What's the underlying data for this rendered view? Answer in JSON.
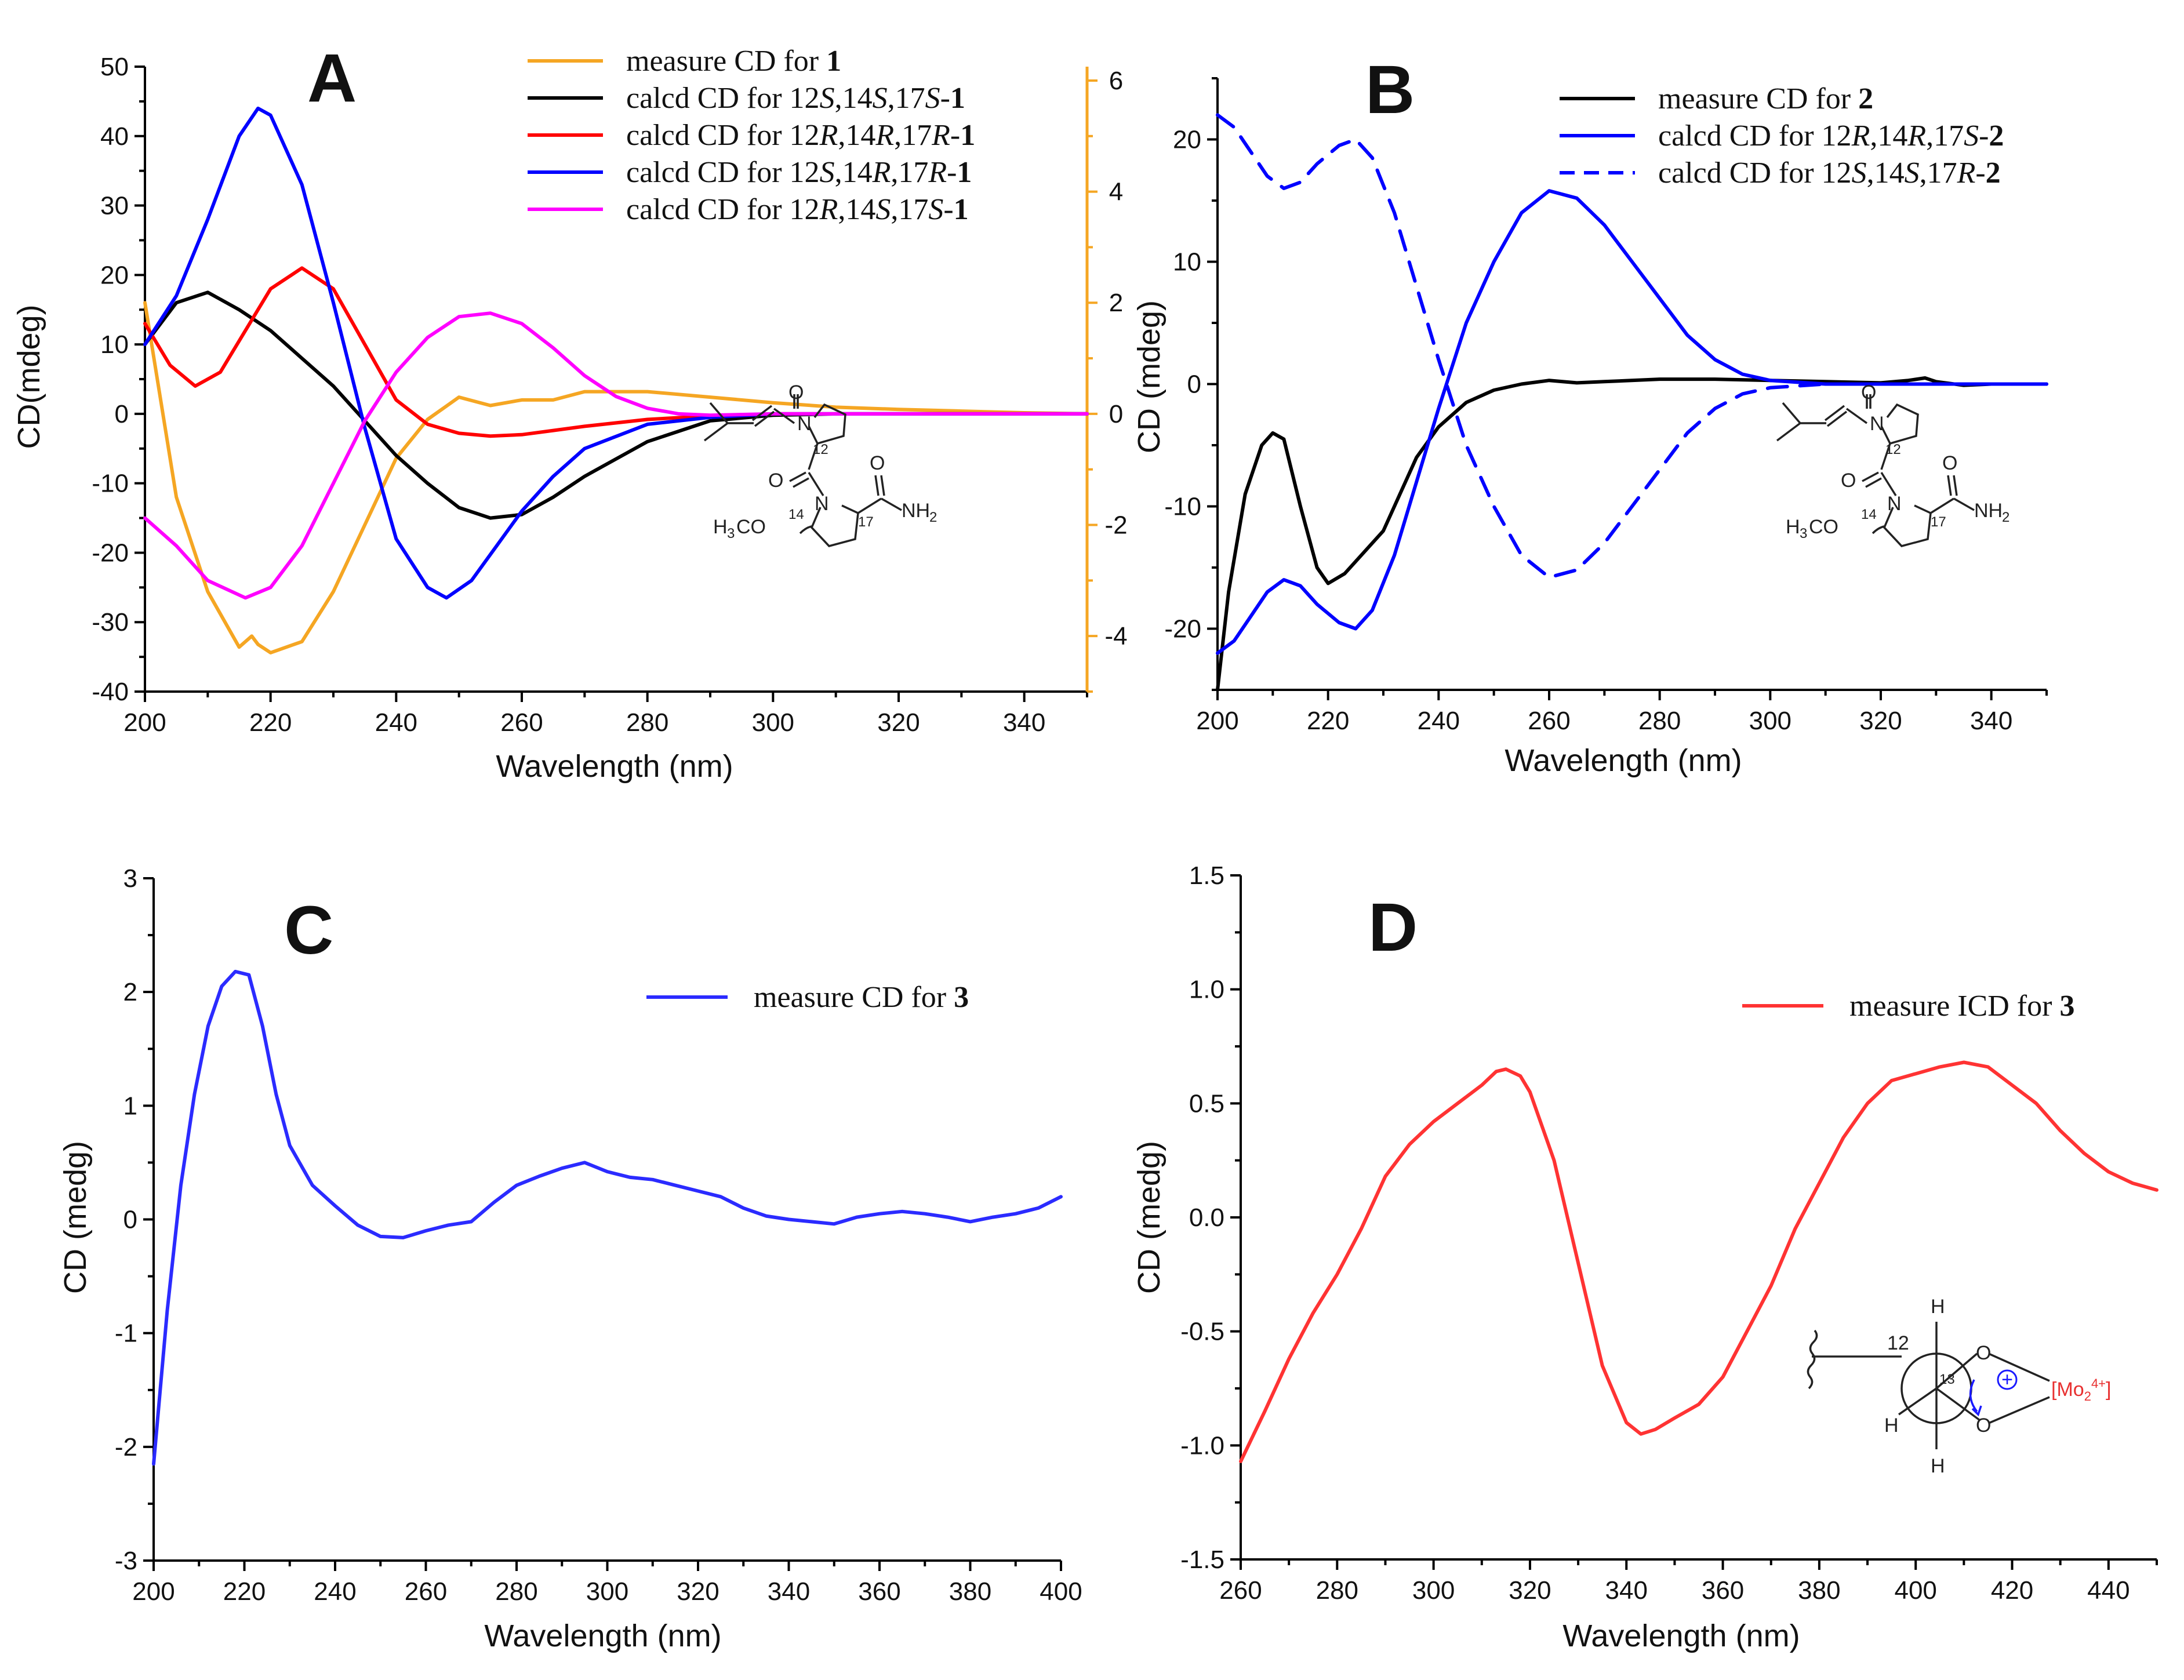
{
  "chart_data": [
    {
      "id": "A",
      "type": "line",
      "panel_label": "A",
      "xlabel": "Wavelength (nm)",
      "ylabel": "CD(mdeg)",
      "xlim": [
        200,
        350
      ],
      "ylim": [
        -40,
        50
      ],
      "y2lim": [
        -5,
        6.25
      ],
      "xticks": [
        200,
        220,
        240,
        260,
        280,
        300,
        320,
        340
      ],
      "yticks": [
        -40,
        -30,
        -20,
        -10,
        0,
        10,
        20,
        30,
        40,
        50
      ],
      "y2ticks": [
        -4,
        -2,
        0,
        2,
        4,
        6
      ],
      "y2_color": "#f5a623",
      "legend_position": "top-right",
      "series": [
        {
          "name": "measure CD for 1",
          "parts": [
            {
              "t": "measure CD for "
            },
            {
              "t": "1",
              "b": true
            }
          ],
          "color": "#f5a623",
          "axis": "right",
          "x": [
            200,
            205,
            210,
            215,
            217,
            218,
            220,
            225,
            230,
            235,
            240,
            245,
            250,
            255,
            260,
            265,
            270,
            275,
            280,
            290,
            300,
            310,
            320,
            330,
            340,
            350
          ],
          "y": [
            2.0,
            -1.5,
            -3.2,
            -4.2,
            -4.0,
            -4.15,
            -4.3,
            -4.1,
            -3.2,
            -2.0,
            -0.8,
            -0.1,
            0.3,
            0.15,
            0.25,
            0.25,
            0.4,
            0.4,
            0.4,
            0.3,
            0.2,
            0.12,
            0.08,
            0.05,
            0.02,
            0.0
          ]
        },
        {
          "name": "calcd CD for 12S,14S,17S-1",
          "parts": [
            {
              "t": "calcd CD for 12"
            },
            {
              "t": "S",
              "i": true
            },
            {
              "t": ",14"
            },
            {
              "t": "S",
              "i": true
            },
            {
              "t": ",17"
            },
            {
              "t": "S",
              "i": true
            },
            {
              "t": "-"
            },
            {
              "t": "1",
              "b": true
            }
          ],
          "color": "#000000",
          "axis": "left",
          "x": [
            200,
            205,
            210,
            215,
            220,
            225,
            230,
            235,
            240,
            245,
            250,
            255,
            260,
            265,
            270,
            280,
            290,
            300,
            310,
            320,
            330,
            340,
            350
          ],
          "y": [
            10,
            16,
            17.5,
            15,
            12,
            8,
            4,
            -1,
            -6,
            -10,
            -13.5,
            -15,
            -14.5,
            -12,
            -9,
            -4,
            -1,
            -0.2,
            0,
            0,
            0,
            0,
            0
          ]
        },
        {
          "name": "calcd CD for 12R,14R,17R-1",
          "parts": [
            {
              "t": "calcd CD for 12"
            },
            {
              "t": "R",
              "i": true
            },
            {
              "t": ",14"
            },
            {
              "t": "R",
              "i": true
            },
            {
              "t": ",17"
            },
            {
              "t": "R",
              "i": true
            },
            {
              "t": "-"
            },
            {
              "t": "1",
              "b": true
            }
          ],
          "color": "#ff0000",
          "axis": "left",
          "x": [
            200,
            204,
            208,
            212,
            216,
            220,
            225,
            230,
            235,
            240,
            245,
            250,
            255,
            260,
            265,
            270,
            280,
            290,
            300,
            310,
            350
          ],
          "y": [
            13,
            7,
            4,
            6,
            12,
            18,
            21,
            18,
            10,
            2,
            -1.5,
            -2.8,
            -3.2,
            -3,
            -2.4,
            -1.8,
            -0.8,
            -0.3,
            0,
            0,
            0
          ]
        },
        {
          "name": "calcd CD for 12S,14R,17R-1",
          "parts": [
            {
              "t": "calcd CD for 12"
            },
            {
              "t": "S",
              "i": true
            },
            {
              "t": ",14"
            },
            {
              "t": "R",
              "i": true
            },
            {
              "t": ",17"
            },
            {
              "t": "R",
              "i": true
            },
            {
              "t": "-"
            },
            {
              "t": "1",
              "b": true
            }
          ],
          "color": "#0000ff",
          "axis": "left",
          "x": [
            200,
            205,
            210,
            215,
            218,
            220,
            225,
            230,
            235,
            240,
            245,
            248,
            252,
            256,
            260,
            265,
            270,
            280,
            290,
            300,
            310,
            350
          ],
          "y": [
            10,
            17,
            28,
            40,
            44,
            43,
            33,
            16,
            -2,
            -18,
            -25,
            -26.5,
            -24,
            -19,
            -14,
            -9,
            -5,
            -1.5,
            -0.5,
            0,
            0,
            0
          ]
        },
        {
          "name": "calcd CD for 12R,14S,17S-1",
          "parts": [
            {
              "t": "calcd CD for 12"
            },
            {
              "t": "R",
              "i": true
            },
            {
              "t": ",14"
            },
            {
              "t": "S",
              "i": true
            },
            {
              "t": ",17"
            },
            {
              "t": "S",
              "i": true
            },
            {
              "t": "-"
            },
            {
              "t": "1",
              "b": true
            }
          ],
          "color": "#ff00ff",
          "axis": "left",
          "x": [
            200,
            205,
            210,
            216,
            220,
            225,
            230,
            235,
            240,
            245,
            250,
            255,
            260,
            265,
            270,
            275,
            280,
            285,
            290,
            300,
            310,
            350
          ],
          "y": [
            -15,
            -19,
            -24,
            -26.5,
            -25,
            -19,
            -10,
            -1,
            6,
            11,
            14,
            14.5,
            13,
            9.5,
            5.5,
            2.5,
            0.8,
            0,
            -0.2,
            0,
            0,
            0
          ]
        }
      ]
    },
    {
      "id": "B",
      "type": "line",
      "panel_label": "B",
      "xlabel": "Wavelength (nm)",
      "ylabel": "CD (mdeg)",
      "xlim": [
        200,
        350
      ],
      "ylim": [
        -25,
        25
      ],
      "xticks": [
        200,
        220,
        240,
        260,
        280,
        300,
        320,
        340
      ],
      "yticks": [
        -20,
        -10,
        0,
        10,
        20
      ],
      "legend_position": "top-right",
      "series": [
        {
          "name": "measure CD for 2",
          "parts": [
            {
              "t": "measure CD for "
            },
            {
              "t": "2",
              "b": true
            }
          ],
          "color": "#000000",
          "dash": "solid",
          "x": [
            200,
            202,
            205,
            208,
            210,
            212,
            215,
            218,
            220,
            223,
            226,
            230,
            233,
            236,
            240,
            245,
            250,
            255,
            260,
            265,
            270,
            280,
            290,
            300,
            310,
            320,
            325,
            328,
            330,
            335,
            340,
            350
          ],
          "y": [
            -25,
            -17,
            -9,
            -5,
            -4,
            -4.5,
            -10,
            -15,
            -16.3,
            -15.5,
            -14,
            -12,
            -9,
            -6,
            -3.5,
            -1.5,
            -0.5,
            0,
            0.3,
            0.1,
            0.2,
            0.4,
            0.4,
            0.3,
            0.2,
            0.1,
            0.3,
            0.5,
            0.2,
            -0.1,
            0,
            0
          ]
        },
        {
          "name": "calcd CD for 12R,14R,17S-2",
          "parts": [
            {
              "t": "calcd CD for 12"
            },
            {
              "t": "R",
              "i": true
            },
            {
              "t": ",14"
            },
            {
              "t": "R",
              "i": true
            },
            {
              "t": ",17"
            },
            {
              "t": "S",
              "i": true
            },
            {
              "t": "-"
            },
            {
              "t": "2",
              "b": true
            }
          ],
          "color": "#0000ff",
          "dash": "solid",
          "x": [
            200,
            203,
            206,
            209,
            212,
            215,
            218,
            222,
            225,
            228,
            232,
            236,
            240,
            245,
            250,
            255,
            260,
            265,
            270,
            275,
            280,
            285,
            290,
            295,
            300,
            310,
            320,
            330,
            340,
            350
          ],
          "y": [
            -22,
            -21,
            -19,
            -17,
            -16,
            -16.5,
            -18,
            -19.5,
            -20,
            -18.5,
            -14,
            -8,
            -2,
            5,
            10,
            14,
            15.8,
            15.2,
            13,
            10,
            7,
            4,
            2,
            0.8,
            0.3,
            0,
            0,
            0,
            0,
            0
          ]
        },
        {
          "name": "calcd CD for 12S,14S,17R-2",
          "parts": [
            {
              "t": "calcd CD for 12"
            },
            {
              "t": "S",
              "i": true
            },
            {
              "t": ",14"
            },
            {
              "t": "S",
              "i": true
            },
            {
              "t": ",17"
            },
            {
              "t": "R",
              "i": true
            },
            {
              "t": "-"
            },
            {
              "t": "2",
              "b": true
            }
          ],
          "color": "#0000ff",
          "dash": "dashed",
          "x": [
            200,
            203,
            206,
            209,
            212,
            215,
            218,
            222,
            225,
            228,
            232,
            236,
            240,
            245,
            250,
            255,
            260,
            265,
            270,
            275,
            280,
            285,
            290,
            295,
            300,
            310,
            320,
            330,
            340,
            350
          ],
          "y": [
            22,
            21,
            19,
            17,
            16,
            16.5,
            18,
            19.5,
            20,
            18.5,
            14,
            8,
            2,
            -5,
            -10,
            -14,
            -15.8,
            -15.2,
            -13,
            -10,
            -7,
            -4,
            -2,
            -0.8,
            -0.3,
            0,
            0,
            0,
            0,
            0
          ]
        }
      ]
    },
    {
      "id": "C",
      "type": "line",
      "panel_label": "C",
      "xlabel": "Wavelength (nm)",
      "ylabel": "CD (medg)",
      "xlim": [
        200,
        400
      ],
      "ylim": [
        -3,
        3
      ],
      "xticks": [
        200,
        220,
        240,
        260,
        280,
        300,
        320,
        340,
        360,
        380,
        400
      ],
      "yticks": [
        -3,
        -2,
        -1,
        0,
        1,
        2,
        3
      ],
      "legend_position": "top-right",
      "series": [
        {
          "name": "measure CD for 3",
          "parts": [
            {
              "t": "measure CD for "
            },
            {
              "t": "3",
              "b": true
            }
          ],
          "color": "#2b2bff",
          "x": [
            200,
            203,
            206,
            209,
            212,
            215,
            218,
            221,
            224,
            227,
            230,
            235,
            240,
            245,
            250,
            255,
            260,
            265,
            270,
            275,
            280,
            285,
            290,
            295,
            300,
            305,
            310,
            315,
            320,
            325,
            330,
            335,
            340,
            345,
            350,
            355,
            360,
            365,
            370,
            375,
            380,
            385,
            390,
            395,
            400
          ],
          "y": [
            -2.15,
            -0.8,
            0.3,
            1.1,
            1.7,
            2.05,
            2.18,
            2.15,
            1.7,
            1.1,
            0.65,
            0.3,
            0.12,
            -0.05,
            -0.15,
            -0.16,
            -0.1,
            -0.05,
            -0.02,
            0.15,
            0.3,
            0.38,
            0.45,
            0.5,
            0.42,
            0.37,
            0.35,
            0.3,
            0.25,
            0.2,
            0.1,
            0.03,
            0.0,
            -0.02,
            -0.04,
            0.02,
            0.05,
            0.07,
            0.05,
            0.02,
            -0.02,
            0.02,
            0.05,
            0.1,
            0.2
          ]
        }
      ]
    },
    {
      "id": "D",
      "type": "line",
      "panel_label": "D",
      "xlabel": "Wavelength (nm)",
      "ylabel": "CD (medg)",
      "xlim": [
        260,
        450
      ],
      "ylim": [
        -1.5,
        1.5
      ],
      "xticks": [
        260,
        280,
        300,
        320,
        340,
        360,
        380,
        400,
        420,
        440
      ],
      "yticks": [
        -1.5,
        -1.0,
        -0.5,
        0.0,
        0.5,
        1.0,
        1.5
      ],
      "legend_position": "top-right",
      "series": [
        {
          "name": "measure ICD for 3",
          "parts": [
            {
              "t": "measure ICD for "
            },
            {
              "t": "3",
              "b": true
            }
          ],
          "color": "#ff3333",
          "x": [
            260,
            265,
            270,
            275,
            280,
            285,
            290,
            295,
            300,
            305,
            310,
            313,
            315,
            318,
            320,
            325,
            330,
            335,
            340,
            343,
            346,
            350,
            355,
            360,
            365,
            370,
            375,
            380,
            385,
            390,
            395,
            400,
            405,
            410,
            415,
            420,
            425,
            430,
            435,
            440,
            445,
            450
          ],
          "y": [
            -1.07,
            -0.85,
            -0.62,
            -0.42,
            -0.25,
            -0.05,
            0.18,
            0.32,
            0.42,
            0.5,
            0.58,
            0.64,
            0.65,
            0.62,
            0.55,
            0.25,
            -0.2,
            -0.65,
            -0.9,
            -0.95,
            -0.93,
            -0.88,
            -0.82,
            -0.7,
            -0.5,
            -0.3,
            -0.05,
            0.15,
            0.35,
            0.5,
            0.6,
            0.63,
            0.66,
            0.68,
            0.66,
            0.58,
            0.5,
            0.38,
            0.28,
            0.2,
            0.15,
            0.12
          ]
        }
      ]
    }
  ],
  "structures": {
    "mol1": {
      "atoms": [
        "O",
        "N",
        "12",
        "O",
        "O",
        "N",
        "NH",
        "2",
        "H",
        "3",
        "CO",
        "14",
        "17"
      ]
    },
    "mol2": {
      "atoms": [
        "O",
        "N",
        "12",
        "O",
        "O",
        "N",
        "NH",
        "2",
        "H",
        "3",
        "CO",
        "14",
        "17"
      ]
    },
    "newman": {
      "atoms": [
        "12",
        "H",
        "H",
        "H",
        "13",
        "O",
        "O",
        "[Mo",
        "2",
        "4+",
        "]",
        "+"
      ],
      "complex_color": "#e83030",
      "arrow_color": "#1a1aff"
    }
  }
}
